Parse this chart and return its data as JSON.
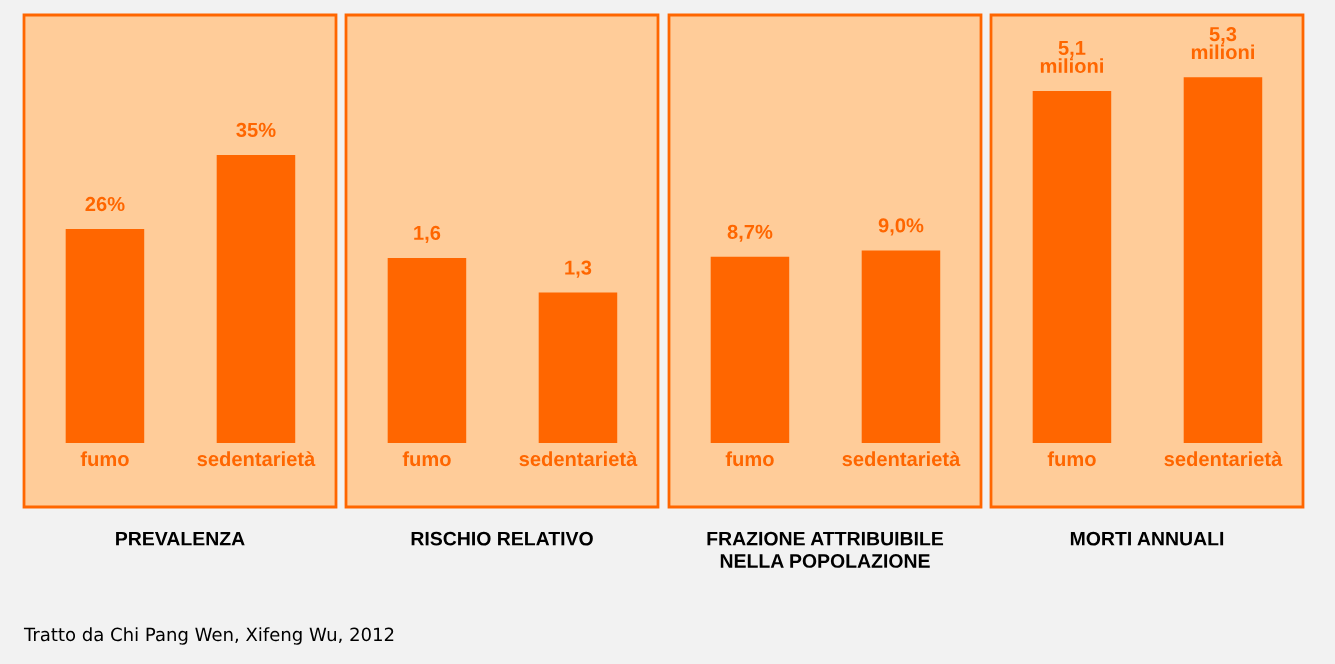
{
  "chart_data": [
    {
      "type": "bar",
      "xlabel": "PREVALENZA",
      "categories": [
        "fumo",
        "sedentarietà"
      ],
      "values": [
        26,
        35
      ],
      "value_labels": [
        "26%",
        "35%"
      ],
      "color": "#ff6600",
      "ylim": [
        0,
        52
      ],
      "tick_labels": "x",
      "grid": false,
      "legend": false
    },
    {
      "type": "bar",
      "xlabel": "RISCHIO RELATIVO",
      "categories": [
        "fumo",
        "sedentarietà"
      ],
      "values": [
        1.6,
        1.3
      ],
      "value_labels": [
        "1,6",
        "1,3"
      ],
      "color": "#ff6600",
      "ylim": [
        0,
        3.7
      ],
      "tick_labels": "x",
      "grid": false,
      "legend": false
    },
    {
      "type": "bar",
      "xlabel": "FRAZIONE ATTRIBUIBILE\nNELLA POPOLAZIONE",
      "categories": [
        "fumo",
        "sedentarietà"
      ],
      "values": [
        8.7,
        9.0
      ],
      "value_labels": [
        "8,7%",
        "9,0%"
      ],
      "color": "#ff6600",
      "ylim": [
        0,
        20
      ],
      "tick_labels": "x",
      "grid": false,
      "legend": false
    },
    {
      "type": "bar",
      "xlabel": "MORTI ANNUALI",
      "categories": [
        "fumo",
        "sedentarietà"
      ],
      "values": [
        5.1,
        5.3
      ],
      "value_labels": [
        "5,1\nmilioni",
        "5,3\nmilioni"
      ],
      "color": "#ff6600",
      "ylim": [
        0,
        6.2
      ],
      "tick_labels": "x",
      "grid": false,
      "legend": false,
      "annotations": [
        "Tratto da Chi Pang Wen, Xifeng Wu, 2012"
      ]
    }
  ]
}
